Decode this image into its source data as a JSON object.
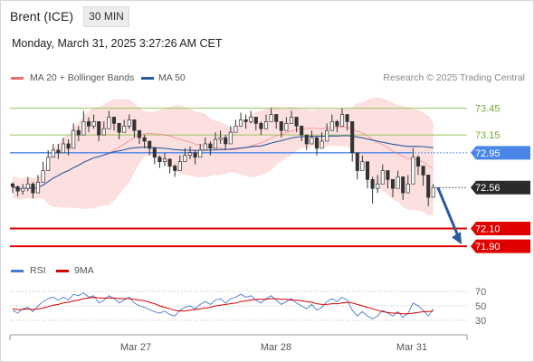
{
  "header": {
    "instrument": "Brent (ICE)",
    "timeframe": "30 MIN",
    "datetime": "Monday, March 31, 2025 3:27:26 AM CET",
    "credit": "Research © 2025 Trading Central"
  },
  "legend_main": {
    "bb_label": "MA 20 + Bollinger Bands",
    "ma50_label": "MA 50"
  },
  "legend_rsi": {
    "rsi_label": "RSI",
    "ma_label": "9MA"
  },
  "colors": {
    "bollinger": "#f06b6b",
    "bollinger_band_fill": "#fbd9d9",
    "ma50": "#2c5aa0",
    "resistance": "#9dc35c",
    "pivot": "#4a86e8",
    "support": "#e00000",
    "current": "#333333",
    "rsi": "#4a7bd0",
    "rsi_ma": "#d60000",
    "candle": "#333333",
    "forecast_arrow": "#2c5aa0"
  },
  "chart_data": {
    "type": "candlestick",
    "price_ylim": [
      71.8,
      73.7
    ],
    "x_labels": [
      "Mar 27",
      "Mar 28",
      "Mar 31"
    ],
    "levels": [
      {
        "name": "resistance-2",
        "value": 73.45,
        "label": "73.45"
      },
      {
        "name": "resistance-1",
        "value": 73.15,
        "label": "73.15"
      },
      {
        "name": "pivot",
        "value": 72.95,
        "label": "72.95"
      },
      {
        "name": "current",
        "value": 72.56,
        "label": "72.56"
      },
      {
        "name": "support-1",
        "value": 72.1,
        "label": "72.10"
      },
      {
        "name": "support-2",
        "value": 71.9,
        "label": "71.90"
      }
    ],
    "close": [
      72.57,
      72.52,
      72.55,
      72.6,
      72.5,
      72.62,
      72.75,
      72.9,
      72.98,
      72.95,
      73.05,
      73.0,
      73.2,
      73.15,
      73.3,
      73.25,
      73.3,
      73.15,
      73.22,
      73.35,
      73.28,
      73.18,
      73.25,
      73.32,
      73.2,
      73.12,
      73.08,
      73.0,
      72.9,
      72.85,
      72.88,
      72.8,
      72.75,
      72.85,
      72.92,
      72.95,
      72.9,
      72.98,
      73.05,
      73.0,
      73.1,
      73.12,
      73.05,
      73.18,
      73.25,
      73.32,
      73.3,
      73.35,
      73.28,
      73.22,
      73.3,
      73.38,
      73.3,
      73.2,
      73.28,
      73.35,
      73.25,
      73.15,
      73.05,
      73.12,
      73.0,
      73.08,
      73.2,
      73.3,
      73.25,
      73.38,
      73.3,
      72.95,
      72.75,
      72.85,
      72.65,
      72.55,
      72.6,
      72.75,
      72.65,
      72.55,
      72.68,
      72.5,
      72.6,
      72.9,
      72.8,
      72.7,
      72.45,
      72.56
    ],
    "high": [
      72.62,
      72.58,
      72.6,
      72.68,
      72.62,
      72.7,
      72.85,
      72.98,
      73.05,
      73.05,
      73.12,
      73.1,
      73.28,
      73.25,
      73.42,
      73.35,
      73.38,
      73.25,
      73.3,
      73.42,
      73.35,
      73.28,
      73.32,
      73.38,
      73.28,
      73.2,
      73.15,
      73.08,
      72.98,
      72.92,
      72.95,
      72.88,
      72.82,
      72.92,
      73.0,
      73.02,
      72.98,
      73.05,
      73.12,
      73.08,
      73.18,
      73.2,
      73.15,
      73.25,
      73.32,
      73.4,
      73.38,
      73.42,
      73.35,
      73.3,
      73.38,
      73.45,
      73.38,
      73.28,
      73.35,
      73.42,
      73.32,
      73.22,
      73.12,
      73.2,
      73.1,
      73.18,
      73.28,
      73.38,
      73.32,
      73.45,
      73.38,
      73.1,
      72.85,
      72.92,
      72.8,
      72.68,
      72.7,
      72.82,
      72.75,
      72.65,
      72.75,
      72.62,
      72.7,
      73.0,
      72.92,
      72.8,
      72.6,
      72.6
    ],
    "low": [
      72.5,
      72.46,
      72.48,
      72.52,
      72.44,
      72.55,
      72.68,
      72.82,
      72.9,
      72.88,
      72.98,
      72.92,
      73.1,
      73.08,
      73.2,
      73.18,
      73.22,
      73.08,
      73.15,
      73.25,
      73.2,
      73.1,
      73.18,
      73.22,
      73.12,
      73.05,
      73.0,
      72.92,
      72.82,
      72.78,
      72.8,
      72.72,
      72.68,
      72.78,
      72.85,
      72.88,
      72.82,
      72.9,
      72.98,
      72.92,
      73.02,
      73.05,
      72.98,
      73.1,
      73.18,
      73.25,
      73.22,
      73.28,
      73.2,
      73.15,
      73.22,
      73.3,
      73.22,
      73.12,
      73.2,
      73.28,
      73.18,
      73.08,
      72.98,
      73.05,
      72.92,
      73.0,
      73.12,
      73.22,
      73.18,
      73.3,
      73.2,
      72.85,
      72.65,
      72.75,
      72.55,
      72.38,
      72.5,
      72.65,
      72.55,
      72.45,
      72.58,
      72.42,
      72.5,
      72.8,
      72.7,
      72.58,
      72.35,
      72.45
    ],
    "rsi_ylim": [
      20,
      80
    ],
    "rsi_ticks": [
      70,
      50,
      30
    ],
    "rsi": [
      44,
      40,
      46,
      48,
      42,
      50,
      56,
      60,
      62,
      58,
      62,
      58,
      66,
      64,
      68,
      62,
      64,
      54,
      58,
      64,
      60,
      54,
      58,
      62,
      54,
      50,
      48,
      45,
      42,
      40,
      43,
      38,
      36,
      44,
      48,
      50,
      46,
      52,
      56,
      52,
      58,
      60,
      54,
      60,
      62,
      66,
      62,
      64,
      58,
      54,
      60,
      64,
      58,
      52,
      56,
      60,
      54,
      50,
      46,
      52,
      44,
      48,
      56,
      60,
      56,
      62,
      58,
      44,
      36,
      42,
      36,
      32,
      36,
      44,
      40,
      36,
      42,
      34,
      40,
      54,
      50,
      44,
      36,
      46
    ],
    "rsi_ma": [
      46,
      45,
      45,
      46,
      45,
      46,
      47,
      49,
      51,
      52,
      54,
      55,
      57,
      58,
      60,
      61,
      62,
      61,
      61,
      61,
      61,
      60,
      60,
      60,
      59,
      58,
      57,
      55,
      53,
      50,
      48,
      46,
      44,
      43,
      43,
      44,
      45,
      46,
      47,
      48,
      50,
      51,
      52,
      53,
      54,
      56,
      57,
      58,
      59,
      59,
      59,
      60,
      60,
      59,
      59,
      58,
      58,
      57,
      56,
      55,
      53,
      52,
      52,
      53,
      53,
      54,
      55,
      54,
      52,
      50,
      48,
      46,
      44,
      42,
      41,
      40,
      40,
      39,
      39,
      40,
      41,
      42,
      42,
      43
    ]
  }
}
